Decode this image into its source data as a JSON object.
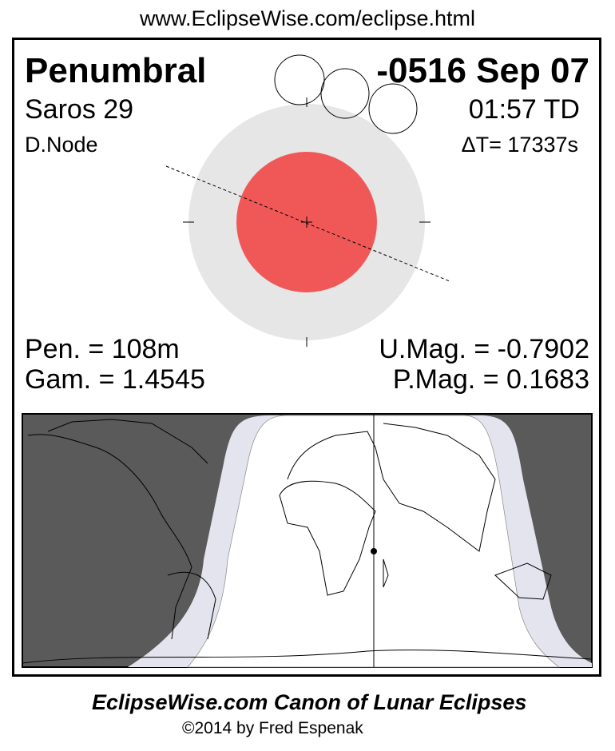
{
  "header": {
    "url": "www.EclipseWise.com/eclipse.html"
  },
  "eclipse": {
    "type": "Penumbral",
    "date": "-0516 Sep 07",
    "saros": "Saros  29",
    "time": "01:57 TD",
    "node": "D.Node",
    "delta_t": "ΔT=  17337s",
    "pen_duration": "Pen. = 108m",
    "gamma": "Gam. = 1.4545",
    "umag": "U.Mag. = -0.7902",
    "pmag": "P.Mag. = 0.1683"
  },
  "colors": {
    "umbra": "#f05858",
    "penumbra": "#e6e6e6",
    "night": "#5a5a5a",
    "penumbral_zone": "#e4e4ef"
  },
  "footer": {
    "title": "EclipseWise.com Canon of Lunar Eclipses",
    "copyright": "©2014 by Fred Espenak"
  }
}
